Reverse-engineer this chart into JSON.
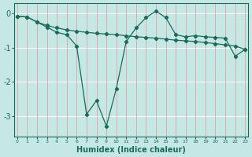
{
  "xlabel": "Humidex (Indice chaleur)",
  "background_color": "#c5e8e5",
  "grid_color_h": "#ffffff",
  "grid_color_v": "#e8a0a0",
  "line_color": "#1a6b5a",
  "x_values": [
    0,
    1,
    2,
    3,
    4,
    5,
    6,
    7,
    8,
    9,
    10,
    11,
    12,
    13,
    14,
    15,
    16,
    17,
    18,
    19,
    20,
    21,
    22,
    23
  ],
  "line1_y": [
    -0.08,
    -0.1,
    -0.25,
    -0.4,
    -0.55,
    -0.62,
    -0.95,
    -2.95,
    -2.55,
    -3.3,
    -2.2,
    -0.82,
    -0.42,
    -0.12,
    0.07,
    -0.12,
    -0.62,
    -0.68,
    -0.65,
    -0.68,
    -0.7,
    -0.72,
    -1.25,
    -1.05
  ],
  "line2_y": [
    -0.08,
    -0.1,
    -0.25,
    -0.35,
    -0.42,
    -0.48,
    -0.52,
    -0.55,
    -0.58,
    -0.6,
    -0.62,
    -0.65,
    -0.68,
    -0.7,
    -0.72,
    -0.75,
    -0.78,
    -0.8,
    -0.82,
    -0.85,
    -0.88,
    -0.92,
    -0.95,
    -1.05
  ],
  "ylim": [
    -3.6,
    0.3
  ],
  "xlim": [
    -0.3,
    23.3
  ],
  "yticks": [
    0,
    -1,
    -2,
    -3
  ],
  "xticks": [
    0,
    1,
    2,
    3,
    4,
    5,
    6,
    7,
    8,
    9,
    10,
    11,
    12,
    13,
    14,
    15,
    16,
    17,
    18,
    19,
    20,
    21,
    22,
    23
  ]
}
